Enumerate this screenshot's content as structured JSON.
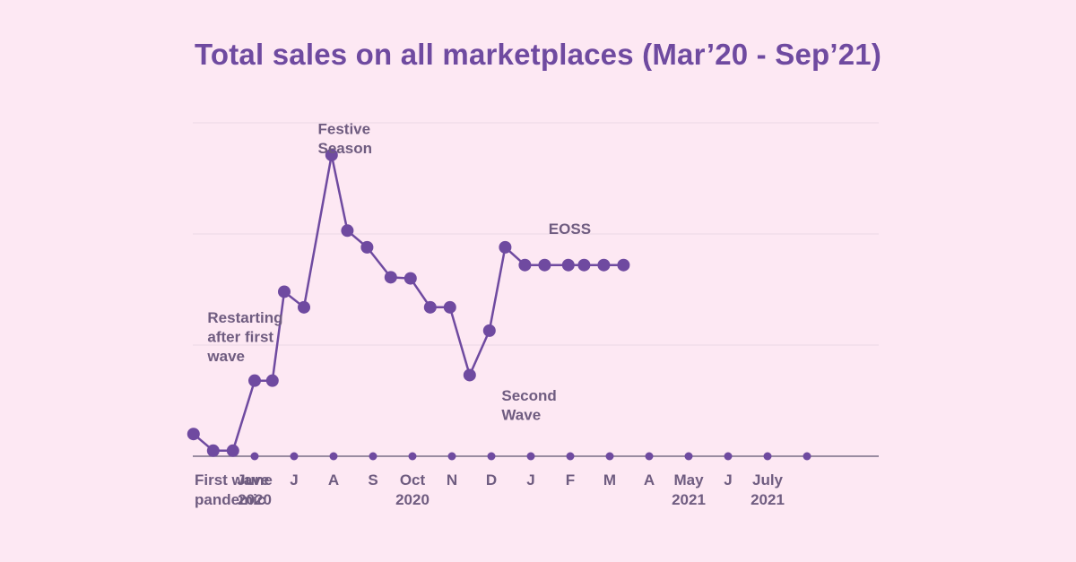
{
  "chart_data": {
    "type": "line",
    "title": "Total sales on all marketplaces (Mar’20 - Sep’21)",
    "xlabel": "",
    "ylabel": "",
    "grid": true,
    "legend": "none",
    "y_axis_labels_visible": false,
    "ylim": [
      0,
      3
    ],
    "colors": {
      "line": "#6f4aa0",
      "point": "#6f4aa0",
      "grid": "#ead7e4",
      "axis": "#7a6e86",
      "text": "#6f5c80",
      "title": "#6f4aa0",
      "background": "#fde8f3"
    },
    "tick_labels": [
      [
        "First wave",
        "pandemic"
      ],
      [
        "June",
        "2020"
      ],
      [
        "J"
      ],
      [
        "A"
      ],
      [
        "S"
      ],
      [
        "Oct",
        "2020"
      ],
      [
        "N"
      ],
      [
        "D"
      ],
      [
        "J"
      ],
      [
        "F"
      ],
      [
        "M"
      ],
      [
        "A"
      ],
      [
        "May",
        "2021"
      ],
      [
        "J"
      ],
      [
        "July",
        "2021"
      ],
      [
        ""
      ]
    ],
    "series": [
      {
        "x": [
          -0.55,
          -0.05,
          0.45,
          1.0,
          1.45,
          1.75,
          2.25,
          2.95,
          3.35,
          3.85,
          4.45,
          4.95,
          5.45,
          5.95,
          6.45,
          6.95,
          7.35,
          7.85,
          8.35,
          8.95,
          9.35,
          9.85,
          10.35
        ],
        "values": [
          0.2,
          0.05,
          0.05,
          0.68,
          0.68,
          1.48,
          1.34,
          2.71,
          2.03,
          1.88,
          1.61,
          1.6,
          1.34,
          1.34,
          0.73,
          1.13,
          1.88,
          1.72,
          1.72,
          1.72,
          1.72,
          1.72,
          1.72
        ]
      }
    ],
    "annotations": [
      {
        "lines": [
          "Festive",
          "Season"
        ],
        "x": 3.35,
        "y": 2.9
      },
      {
        "lines": [
          "Restarting",
          "after first",
          "wave"
        ],
        "x": 0.98,
        "y": 1.2
      },
      {
        "lines": [
          "Second",
          "Wave"
        ],
        "x": 7.9,
        "y": 0.5
      },
      {
        "lines": [
          "EOSS"
        ],
        "x": 8.95,
        "y": 2.0
      }
    ]
  }
}
